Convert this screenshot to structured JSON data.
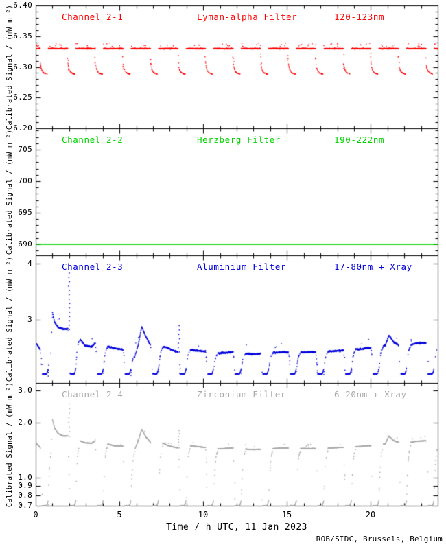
{
  "chart_data": {
    "type": "scatter",
    "instrument_note": "Four stacked daily time-series panels sharing one time axis",
    "xlabel": "Time / h UTC, 11 Jan 2023",
    "credit": "ROB/SIDC, Brussels, Belgium",
    "x_range_h": [
      0,
      24
    ],
    "xticks": [
      {
        "v": 0,
        "label": "0"
      },
      {
        "v": 5,
        "label": "5"
      },
      {
        "v": 10,
        "label": "10"
      },
      {
        "v": 15,
        "label": "15"
      },
      {
        "v": 20,
        "label": "20"
      }
    ],
    "x_minor_step_h": 1,
    "frame_color": "#000000",
    "eclipse_centers_h": [
      0.55,
      2.2,
      3.84,
      5.49,
      7.13,
      8.78,
      10.42,
      12.07,
      13.71,
      15.36,
      17.0,
      18.65,
      20.29,
      21.94,
      23.58
    ],
    "panels": [
      {
        "id": "ch1",
        "channel": "Channel 2-1",
        "filter": "Lyman-alpha Filter",
        "band": "120-123nm",
        "color": "#ff0000",
        "ylabel": "Calibrated Signal / (mW m⁻²)",
        "yscale": "linear",
        "y_range": [
          6.2,
          6.4
        ],
        "yticks": [
          {
            "v": 6.4,
            "label": "6.40"
          },
          {
            "v": 6.35,
            "label": "6.35"
          },
          {
            "v": 6.3,
            "label": "6.30"
          },
          {
            "v": 6.25,
            "label": "6.25"
          },
          {
            "v": 6.2,
            "label": "6.20"
          }
        ],
        "y_minor_step": 0.01,
        "series": {
          "kind": "baseline_with_eclipse_dips",
          "baseline": 6.3305,
          "noise": 0.0011,
          "dip_entry_level": 6.307,
          "dip_floor": 6.2895
        }
      },
      {
        "id": "ch2",
        "channel": "Channel 2-2",
        "filter": "Herzberg Filter",
        "band": "190-222nm",
        "color": "#00d400",
        "ylabel": "Calibrated Signal / (mW m⁻²)",
        "yscale": "linear",
        "y_range": [
          688.26,
          708.37
        ],
        "yticks": [
          {
            "v": 705,
            "label": "705"
          },
          {
            "v": 700,
            "label": "700"
          },
          {
            "v": 695,
            "label": "695"
          },
          {
            "v": 690,
            "label": "690"
          }
        ],
        "y_minor_step": 1,
        "series": {
          "kind": "constant_line",
          "value": 690.0
        }
      },
      {
        "id": "ch3",
        "channel": "Channel 2-3",
        "filter": "Aluminium Filter",
        "band": "17-80nm + Xray",
        "color": "#0000dd",
        "ylabel": "Calibrated Signal / (mW m⁻²)",
        "yscale": "log",
        "y_range": [
          2.173,
          4.172
        ],
        "yticks": [
          {
            "v": 4,
            "label": "4"
          },
          {
            "v": 3,
            "label": "3"
          }
        ],
        "y_minor_step": null,
        "series": {
          "kind": "plateau_with_eclipse_dips",
          "dip_floor": 2.28,
          "floor_curl": 0.03,
          "noise": 0.0055,
          "envelope": [
            [
              0,
              2.67
            ],
            [
              0.25,
              2.58
            ],
            [
              0.45,
              2.53
            ],
            [
              0.88,
              2.58
            ],
            [
              0.97,
              3.12
            ],
            [
              1.1,
              2.97
            ],
            [
              1.3,
              2.9
            ],
            [
              1.6,
              2.87
            ],
            [
              1.93,
              2.87
            ],
            [
              2.6,
              2.73
            ],
            [
              2.9,
              2.64
            ],
            [
              3.3,
              2.62
            ],
            [
              3.65,
              2.7
            ],
            [
              3.85,
              2.63
            ],
            [
              4.3,
              2.62
            ],
            [
              4.7,
              2.6
            ],
            [
              5.1,
              2.59
            ],
            [
              5.5,
              2.55
            ],
            [
              5.9,
              2.5
            ],
            [
              6.1,
              2.65
            ],
            [
              6.3,
              2.9
            ],
            [
              6.55,
              2.76
            ],
            [
              6.8,
              2.65
            ],
            [
              7.1,
              2.58
            ],
            [
              7.6,
              2.62
            ],
            [
              7.9,
              2.6
            ],
            [
              8.3,
              2.56
            ],
            [
              8.6,
              2.55
            ],
            [
              9.1,
              2.58
            ],
            [
              9.5,
              2.57
            ],
            [
              10.1,
              2.56
            ],
            [
              10.6,
              2.53
            ],
            [
              11.2,
              2.54
            ],
            [
              11.8,
              2.55
            ],
            [
              12.4,
              2.53
            ],
            [
              13,
              2.52
            ],
            [
              13.6,
              2.53
            ],
            [
              14.2,
              2.54
            ],
            [
              14.8,
              2.55
            ],
            [
              15.5,
              2.54
            ],
            [
              16.2,
              2.55
            ],
            [
              16.9,
              2.55
            ],
            [
              17.6,
              2.56
            ],
            [
              18.3,
              2.57
            ],
            [
              19,
              2.58
            ],
            [
              19.7,
              2.6
            ],
            [
              20.5,
              2.61
            ],
            [
              20.85,
              2.64
            ],
            [
              21.05,
              2.78
            ],
            [
              21.35,
              2.68
            ],
            [
              21.7,
              2.63
            ],
            [
              22.2,
              2.63
            ],
            [
              22.7,
              2.67
            ],
            [
              23.2,
              2.67
            ],
            [
              23.7,
              2.64
            ],
            [
              24,
              2.62
            ]
          ],
          "spikes": [
            {
              "t": 1.97,
              "peak": 3.82
            },
            {
              "t": 8.52,
              "peak": 2.92
            }
          ]
        }
      },
      {
        "id": "ch4",
        "channel": "Channel 2-4",
        "filter": "Zirconium Filter",
        "band": "6-20nm + Xray",
        "color": "#a9a9a9",
        "ylabel": "Calibrated Signal / (mW m⁻²)",
        "yscale": "log",
        "y_range": [
          0.7,
          3.304
        ],
        "yticks": [
          {
            "v": 3.0,
            "label": "3.0"
          },
          {
            "v": 2.0,
            "label": "2.0"
          },
          {
            "v": 1.0,
            "label": "1.0"
          },
          {
            "v": 0.9,
            "label": "0.9"
          },
          {
            "v": 0.8,
            "label": "0.8"
          },
          {
            "v": 0.7,
            "label": "0.7"
          }
        ],
        "y_minor_step": null,
        "series": {
          "kind": "plateau_with_eclipse_dips",
          "dip_floor": 0.705,
          "floor_curl": 0.07,
          "noise": 0.005,
          "envelope": [
            [
              0,
              1.55
            ],
            [
              0.25,
              1.47
            ],
            [
              0.45,
              1.43
            ],
            [
              0.88,
              1.48
            ],
            [
              0.97,
              2.1
            ],
            [
              1.1,
              1.88
            ],
            [
              1.3,
              1.76
            ],
            [
              1.6,
              1.7
            ],
            [
              1.93,
              1.7
            ],
            [
              2.6,
              1.6
            ],
            [
              2.9,
              1.56
            ],
            [
              3.3,
              1.55
            ],
            [
              3.65,
              1.62
            ],
            [
              3.85,
              1.56
            ],
            [
              4.3,
              1.53
            ],
            [
              4.7,
              1.5
            ],
            [
              5.1,
              1.5
            ],
            [
              5.5,
              1.47
            ],
            [
              5.9,
              1.44
            ],
            [
              6.1,
              1.6
            ],
            [
              6.3,
              1.85
            ],
            [
              6.55,
              1.68
            ],
            [
              6.8,
              1.58
            ],
            [
              7.1,
              1.48
            ],
            [
              7.6,
              1.55
            ],
            [
              7.9,
              1.5
            ],
            [
              8.3,
              1.47
            ],
            [
              8.6,
              1.46
            ],
            [
              9.1,
              1.5
            ],
            [
              9.5,
              1.49
            ],
            [
              10.1,
              1.47
            ],
            [
              10.6,
              1.44
            ],
            [
              11.2,
              1.45
            ],
            [
              11.8,
              1.46
            ],
            [
              12.4,
              1.44
            ],
            [
              13,
              1.43
            ],
            [
              13.6,
              1.44
            ],
            [
              14.2,
              1.45
            ],
            [
              14.8,
              1.46
            ],
            [
              15.5,
              1.45
            ],
            [
              16.2,
              1.45
            ],
            [
              16.9,
              1.45
            ],
            [
              17.6,
              1.46
            ],
            [
              18.3,
              1.47
            ],
            [
              19,
              1.48
            ],
            [
              19.7,
              1.5
            ],
            [
              20.5,
              1.51
            ],
            [
              20.85,
              1.54
            ],
            [
              21.05,
              1.7
            ],
            [
              21.35,
              1.6
            ],
            [
              21.7,
              1.56
            ],
            [
              22.2,
              1.56
            ],
            [
              22.7,
              1.59
            ],
            [
              23.2,
              1.6
            ],
            [
              23.7,
              1.57
            ],
            [
              24,
              1.56
            ]
          ],
          "spikes": [
            {
              "t": 1.97,
              "peak": 2.55
            },
            {
              "t": 8.52,
              "peak": 1.82
            }
          ]
        }
      }
    ]
  }
}
